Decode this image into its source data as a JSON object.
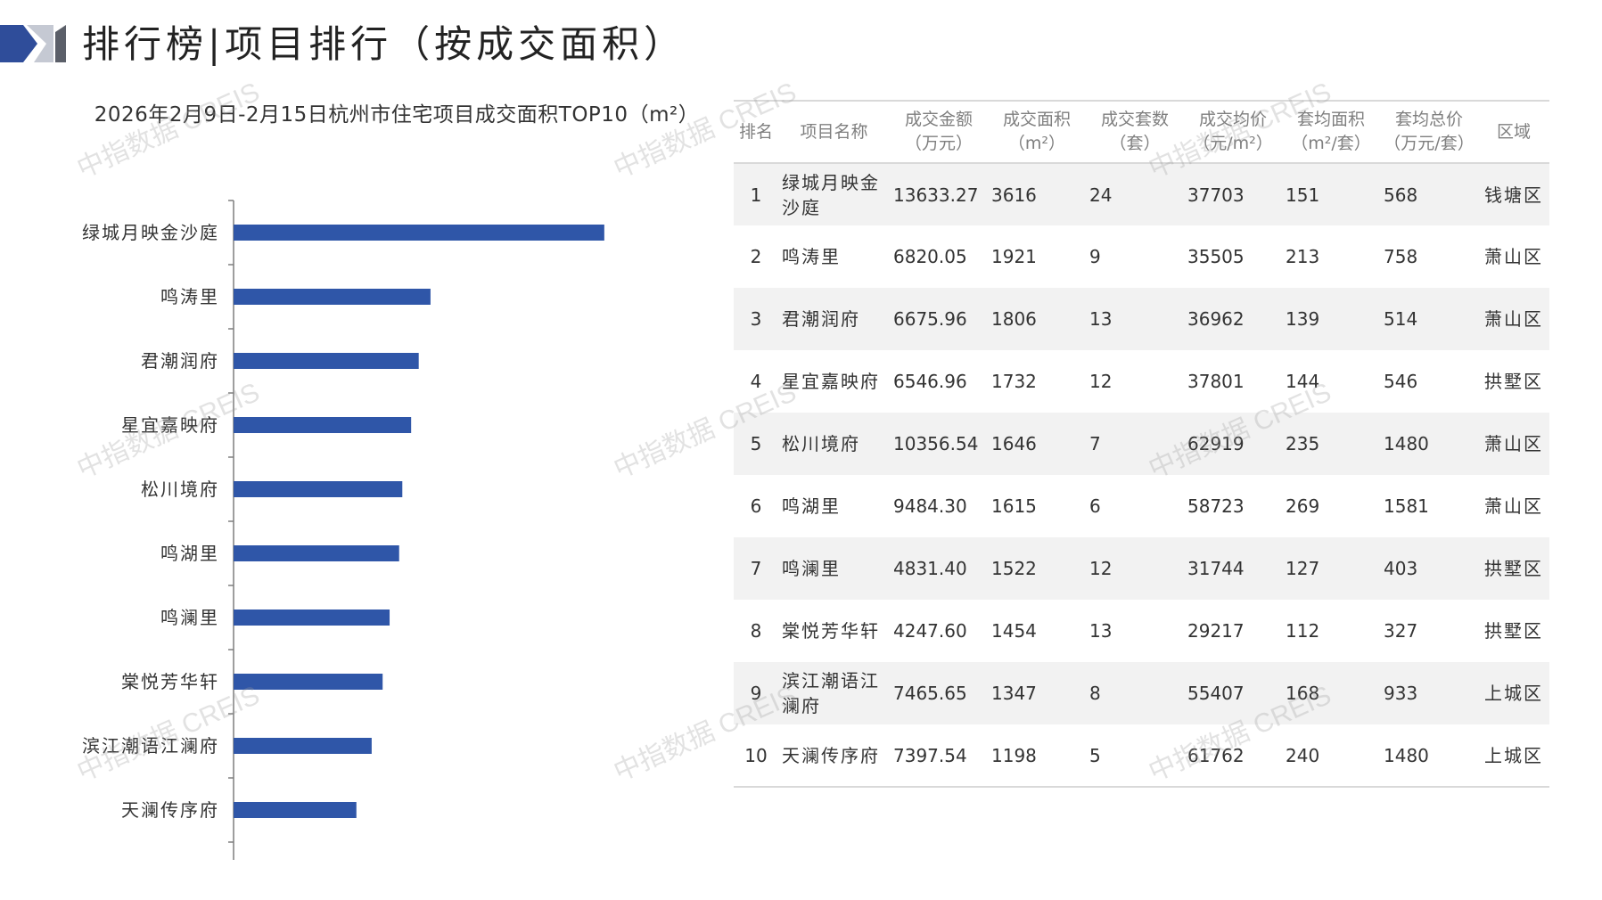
{
  "header": {
    "title": "排行榜|项目排行（按成交面积）",
    "accent_color": "#2f4d9a",
    "secondary_color": "#c5c9d3"
  },
  "chart_data": {
    "type": "bar",
    "orientation": "horizontal",
    "title": "2026年2月9日-2月15日杭州市住宅项目成交面积TOP10（m²）",
    "categories": [
      "绿城月映金沙庭",
      "鸣涛里",
      "君潮润府",
      "星宜嘉映府",
      "松川境府",
      "鸣湖里",
      "鸣澜里",
      "棠悦芳华轩",
      "滨江潮语江澜府",
      "天澜传序府"
    ],
    "values": [
      3616,
      1921,
      1806,
      1732,
      1646,
      1615,
      1522,
      1454,
      1347,
      1198
    ],
    "bar_color": "#2f56a8",
    "xlim": [
      0,
      4000
    ],
    "grid": false,
    "legend": "none"
  },
  "table": {
    "headers": [
      "排名",
      "项目名称",
      "成交金额\n（万元）",
      "成交面积\n（m²）",
      "成交套数\n（套）",
      "成交均价\n（元/m²）",
      "套均面积\n（m²/套）",
      "套均总价\n（万元/套）",
      "区域"
    ],
    "rows": [
      [
        "1",
        "绿城月映金沙庭",
        "13633.27",
        "3616",
        "24",
        "37703",
        "151",
        "568",
        "钱塘区"
      ],
      [
        "2",
        "鸣涛里",
        "6820.05",
        "1921",
        "9",
        "35505",
        "213",
        "758",
        "萧山区"
      ],
      [
        "3",
        "君潮润府",
        "6675.96",
        "1806",
        "13",
        "36962",
        "139",
        "514",
        "萧山区"
      ],
      [
        "4",
        "星宜嘉映府",
        "6546.96",
        "1732",
        "12",
        "37801",
        "144",
        "546",
        "拱墅区"
      ],
      [
        "5",
        "松川境府",
        "10356.54",
        "1646",
        "7",
        "62919",
        "235",
        "1480",
        "萧山区"
      ],
      [
        "6",
        "鸣湖里",
        "9484.30",
        "1615",
        "6",
        "58723",
        "269",
        "1581",
        "萧山区"
      ],
      [
        "7",
        "鸣澜里",
        "4831.40",
        "1522",
        "12",
        "31744",
        "127",
        "403",
        "拱墅区"
      ],
      [
        "8",
        "棠悦芳华轩",
        "4247.60",
        "1454",
        "13",
        "29217",
        "112",
        "327",
        "拱墅区"
      ],
      [
        "9",
        "滨江潮语江澜府",
        "7465.65",
        "1347",
        "8",
        "55407",
        "168",
        "933",
        "上城区"
      ],
      [
        "10",
        "天澜传序府",
        "7397.54",
        "1198",
        "5",
        "61762",
        "240",
        "1480",
        "上城区"
      ]
    ]
  },
  "watermark": {
    "text": "中指数据 CREIS"
  }
}
